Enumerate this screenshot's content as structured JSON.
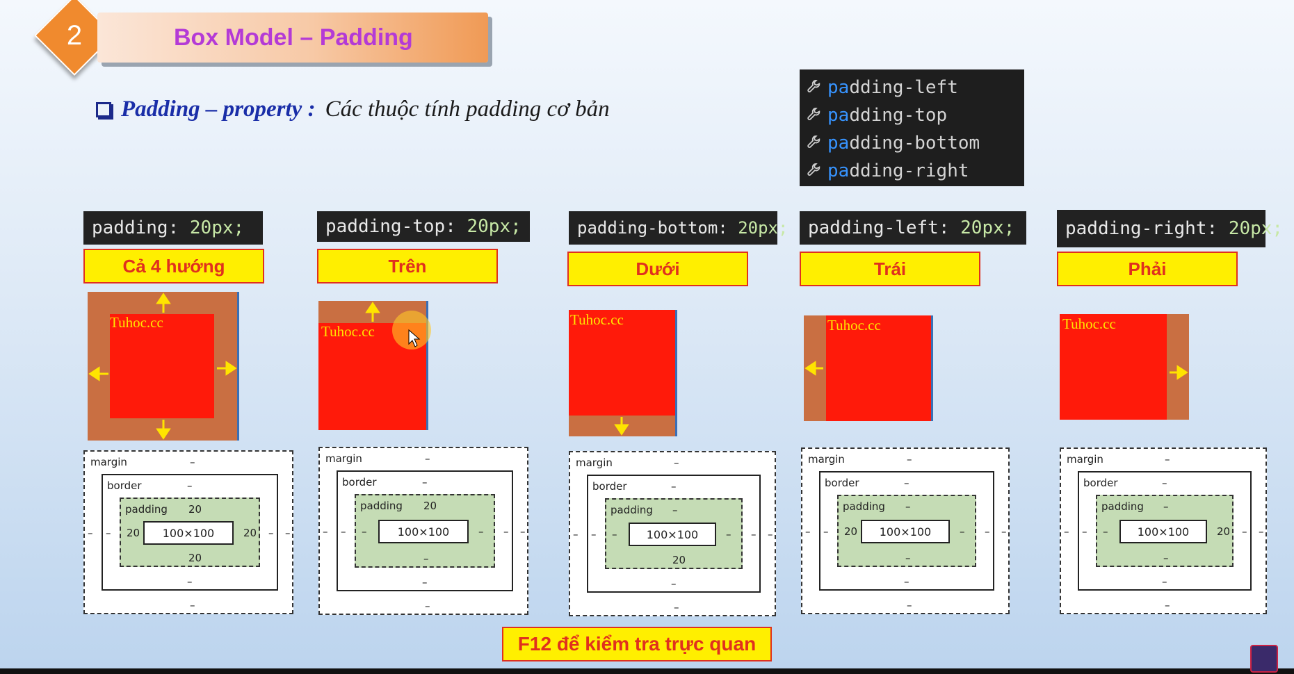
{
  "header": {
    "badge_number": "2",
    "title": "Box Model – Padding",
    "subtitle_lead": "Padding – property :",
    "subtitle_rest": "Các thuộc tính padding cơ bản"
  },
  "autocomplete": {
    "match": "pa",
    "items": [
      "dding-left",
      "dding-top",
      "dding-bottom",
      "dding-right"
    ],
    "icon": "wrench-icon"
  },
  "columns": [
    {
      "code_prop": "padding",
      "code_value": "20px;",
      "label": "Cả 4 hướng",
      "demo_text": "Tuhoc.cc",
      "bm": {
        "margin": "margin",
        "border": "border",
        "padding": "padding",
        "content": "100×100",
        "m_top": "–",
        "m_bottom": "–",
        "m_left": "–",
        "m_right": "–",
        "b_top": "–",
        "b_bottom": "–",
        "b_left": "–",
        "b_right": "–",
        "p_top": "20",
        "p_bottom": "20",
        "p_left": "20",
        "p_right": "20"
      }
    },
    {
      "code_prop": "padding-top",
      "code_value": "20px;",
      "label": "Trên",
      "demo_text": "Tuhoc.cc",
      "bm": {
        "margin": "margin",
        "border": "border",
        "padding": "padding",
        "content": "100×100",
        "m_top": "–",
        "m_bottom": "–",
        "m_left": "–",
        "m_right": "–",
        "b_top": "–",
        "b_bottom": "–",
        "b_left": "–",
        "b_right": "–",
        "p_top": "20",
        "p_bottom": "–",
        "p_left": "–",
        "p_right": "–"
      }
    },
    {
      "code_prop": "padding-bottom",
      "code_value": "20px;",
      "label": "Dưới",
      "demo_text": "Tuhoc.cc",
      "bm": {
        "margin": "margin",
        "border": "border",
        "padding": "padding",
        "content": "100×100",
        "m_top": "–",
        "m_bottom": "–",
        "m_left": "–",
        "m_right": "–",
        "b_top": "–",
        "b_bottom": "–",
        "b_left": "–",
        "b_right": "–",
        "p_top": "–",
        "p_bottom": "20",
        "p_left": "–",
        "p_right": "–"
      }
    },
    {
      "code_prop": "padding-left",
      "code_value": "20px;",
      "label": "Trái",
      "demo_text": "Tuhoc.cc",
      "bm": {
        "margin": "margin",
        "border": "border",
        "padding": "padding",
        "content": "100×100",
        "m_top": "–",
        "m_bottom": "–",
        "m_left": "–",
        "m_right": "–",
        "b_top": "–",
        "b_bottom": "–",
        "b_left": "–",
        "b_right": "–",
        "p_top": "–",
        "p_bottom": "–",
        "p_left": "20",
        "p_right": "–"
      }
    },
    {
      "code_prop": "padding-right",
      "code_value": "20px;",
      "label": "Phải",
      "demo_text": "Tuhoc.cc",
      "bm": {
        "margin": "margin",
        "border": "border",
        "padding": "padding",
        "content": "100×100",
        "m_top": "–",
        "m_bottom": "–",
        "m_left": "–",
        "m_right": "–",
        "b_top": "–",
        "b_bottom": "–",
        "b_left": "–",
        "b_right": "–",
        "p_top": "–",
        "p_bottom": "–",
        "p_left": "–",
        "p_right": "20"
      }
    }
  ],
  "footer": {
    "label": "F12 để kiểm tra trực quan"
  },
  "colors": {
    "accent": "#f08a2e",
    "title": "#b43ad6",
    "label_text": "#e0301e",
    "label_bg": "#ffef00",
    "padding_area": "#c96f42",
    "content_area": "#ff1a0a",
    "bm_padding": "#c5dcb5"
  }
}
